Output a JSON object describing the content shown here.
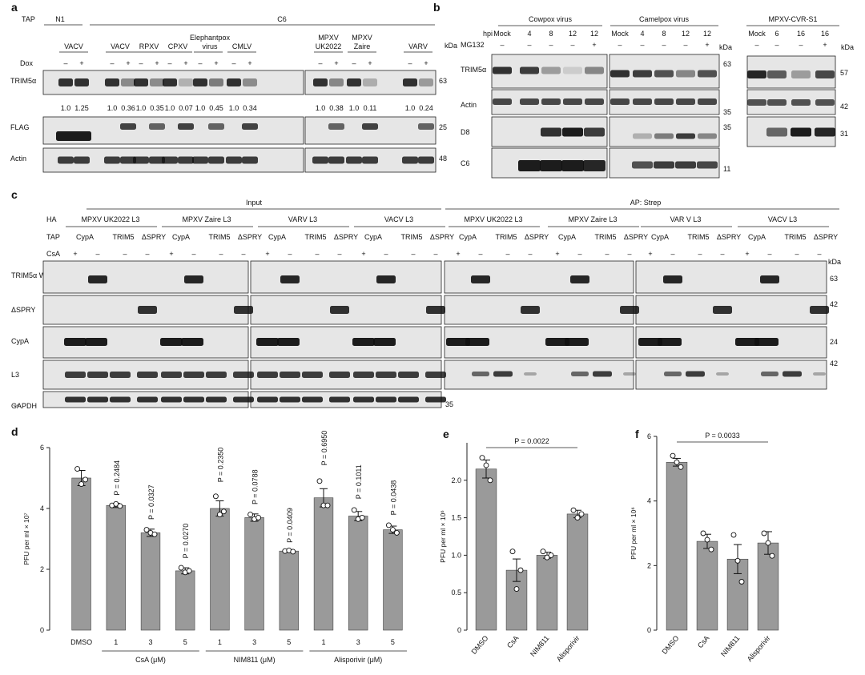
{
  "panel_letters": [
    "a",
    "b",
    "c",
    "d",
    "e",
    "f"
  ],
  "kda": "kDa",
  "panelA": {
    "tap_label": "TAP",
    "tap_groups": [
      "N1",
      "C6"
    ],
    "viruses": [
      "VACV",
      "VACV",
      "RPXV",
      "CPXV",
      "Elephantpox virus",
      "CMLV",
      "MPXV UK2022",
      "MPXV Zaire",
      "VARV"
    ],
    "dox_label": "Dox",
    "dox_signs": [
      "–",
      "+"
    ],
    "rows": [
      "TRIM5α",
      "FLAG",
      "Actin"
    ],
    "ratios": [
      "1.0",
      "1.25",
      "1.0",
      "0.36",
      "1.0",
      "0.35",
      "1.0",
      "0.07",
      "1.0",
      "0.45",
      "1.0",
      "0.34",
      "1.0",
      "0.38",
      "1.0",
      "0.11",
      "1.0",
      "0.24"
    ],
    "markers": [
      "63",
      "25",
      "48"
    ]
  },
  "panelB": {
    "groups": [
      "Cowpox virus",
      "Camelpox virus",
      "MPXV-CVR-S1"
    ],
    "hpi_label": "hpi",
    "mg_label": "MG132",
    "hpi_left": [
      "Mock",
      "4",
      "8",
      "12",
      "12"
    ],
    "mg_left": [
      "–",
      "–",
      "–",
      "–",
      "+"
    ],
    "hpi_right": [
      "Mock",
      "6",
      "16",
      "16"
    ],
    "mg_right": [
      "–",
      "–",
      "–",
      "+"
    ],
    "rows": [
      "TRIM5α",
      "Actin",
      "D8",
      "C6"
    ],
    "markers_mid": [
      "63",
      "35",
      "35",
      "11"
    ],
    "markers_right": [
      "57",
      "42",
      "31"
    ]
  },
  "panelC": {
    "sections": [
      "Input",
      "AP: Strep"
    ],
    "ha_label": "HA",
    "tap_label": "TAP",
    "csa_label": "CsA",
    "ha_groups": [
      "MPXV UK2022 L3",
      "MPXV  Zaire L3",
      "VARV L3",
      "VACV L3",
      "MPXV UK2022 L3",
      "MPXV Zaire L3",
      "VAR V L3",
      "VACV L3"
    ],
    "tap_items": [
      "CypA",
      "TRIM5",
      "ΔSPRY"
    ],
    "csa_signs": [
      "+",
      "–",
      "–",
      "–"
    ],
    "rows": [
      "TRIM5α WT",
      "ΔSPRY",
      "CypA",
      "L3",
      "GAPDH"
    ],
    "markers": [
      "63",
      "42",
      "24",
      "42",
      "35"
    ]
  },
  "chart_data": [
    {
      "type": "bar",
      "panel": "d",
      "ylabel": "PFU per ml × 10⁷",
      "ylim": [
        0,
        6
      ],
      "yticks": [
        0,
        2,
        4,
        6
      ],
      "categories": [
        "DMSO",
        "1",
        "3",
        "5",
        "1",
        "3",
        "5",
        "1",
        "3",
        "5"
      ],
      "values": [
        5.0,
        4.1,
        3.2,
        1.95,
        4.0,
        3.7,
        2.6,
        4.35,
        3.75,
        3.3
      ],
      "errors": [
        0.25,
        0.07,
        0.12,
        0.1,
        0.25,
        0.12,
        0.04,
        0.3,
        0.15,
        0.12
      ],
      "points": [
        [
          5.3,
          4.8,
          4.95
        ],
        [
          4.1,
          4.15,
          4.08
        ],
        [
          3.3,
          3.2,
          3.15
        ],
        [
          2.05,
          1.9,
          1.95
        ],
        [
          4.4,
          3.8,
          3.9
        ],
        [
          3.8,
          3.65,
          3.7
        ],
        [
          2.6,
          2.62,
          2.58
        ],
        [
          4.9,
          4.1,
          4.1
        ],
        [
          3.95,
          3.65,
          3.7
        ],
        [
          3.45,
          3.3,
          3.2
        ]
      ],
      "pvalues": [
        "",
        "P = 0.2484",
        "P = 0.0327",
        "P = 0.0270",
        "P = 0.2350",
        "P = 0.0788",
        "P = 0.0409",
        "P = 0.6950",
        "P = 0.1011",
        "P = 0.0438"
      ],
      "group_labels": [
        "CsA (μM)",
        "NIM811 (μM)",
        "Alisporivir (μM)"
      ]
    },
    {
      "type": "bar",
      "panel": "e",
      "ylabel": "PFU per ml × 10⁶",
      "ylim": [
        0,
        2.5
      ],
      "yticks": [
        "0",
        "0.5",
        "1.0",
        "1.5",
        "2.0"
      ],
      "categories": [
        "DMSO",
        "CsA",
        "NIM811",
        "Alisporivir"
      ],
      "values": [
        2.15,
        0.8,
        1.0,
        1.55
      ],
      "errors": [
        0.12,
        0.15,
        0.04,
        0.05
      ],
      "points": [
        [
          2.3,
          2.2,
          2.0
        ],
        [
          1.05,
          0.55,
          0.8
        ],
        [
          1.05,
          0.97,
          1.0
        ],
        [
          1.6,
          1.5,
          1.55
        ]
      ],
      "annotation": "P = 0.0022"
    },
    {
      "type": "bar",
      "panel": "f",
      "ylabel": "PFU per ml × 10⁶",
      "ylim": [
        0,
        6
      ],
      "yticks": [
        0,
        2,
        4,
        6
      ],
      "categories": [
        "DMSO",
        "CsA",
        "NIM811",
        "Alisporivir"
      ],
      "values": [
        5.2,
        2.75,
        2.2,
        2.7
      ],
      "errors": [
        0.12,
        0.22,
        0.45,
        0.35
      ],
      "points": [
        [
          5.4,
          5.2,
          5.05
        ],
        [
          3.0,
          2.8,
          2.5
        ],
        [
          2.95,
          2.15,
          1.5
        ],
        [
          3.0,
          2.7,
          2.3
        ]
      ],
      "annotation": "P = 0.0033"
    }
  ]
}
